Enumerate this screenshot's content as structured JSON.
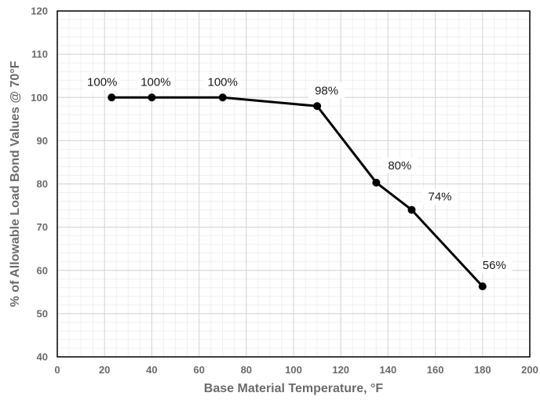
{
  "chart_data": {
    "type": "line",
    "title": "",
    "xlabel": "Base Material Temperature, °F",
    "ylabel": "% of Allowable Load Bond Values @ 70°F",
    "xlim": [
      0,
      200
    ],
    "ylim": [
      40,
      120
    ],
    "x_major_ticks": [
      0,
      20,
      40,
      60,
      80,
      100,
      120,
      140,
      160,
      180,
      200
    ],
    "y_major_ticks": [
      40,
      50,
      60,
      70,
      80,
      90,
      100,
      110,
      120
    ],
    "grid": true,
    "minor_grid": true,
    "legend": "none",
    "line_color": "#000000",
    "grid_color": "#d9d9d9",
    "minor_grid_color": "#efefef",
    "series": [
      {
        "x": [
          23,
          40,
          70,
          110,
          135,
          150,
          180
        ],
        "y": [
          100,
          100,
          100,
          98,
          80.3,
          74,
          56.3
        ],
        "labels": [
          "100%",
          "100%",
          "100%",
          "98%",
          "80%",
          "74%",
          "56%"
        ]
      }
    ]
  }
}
